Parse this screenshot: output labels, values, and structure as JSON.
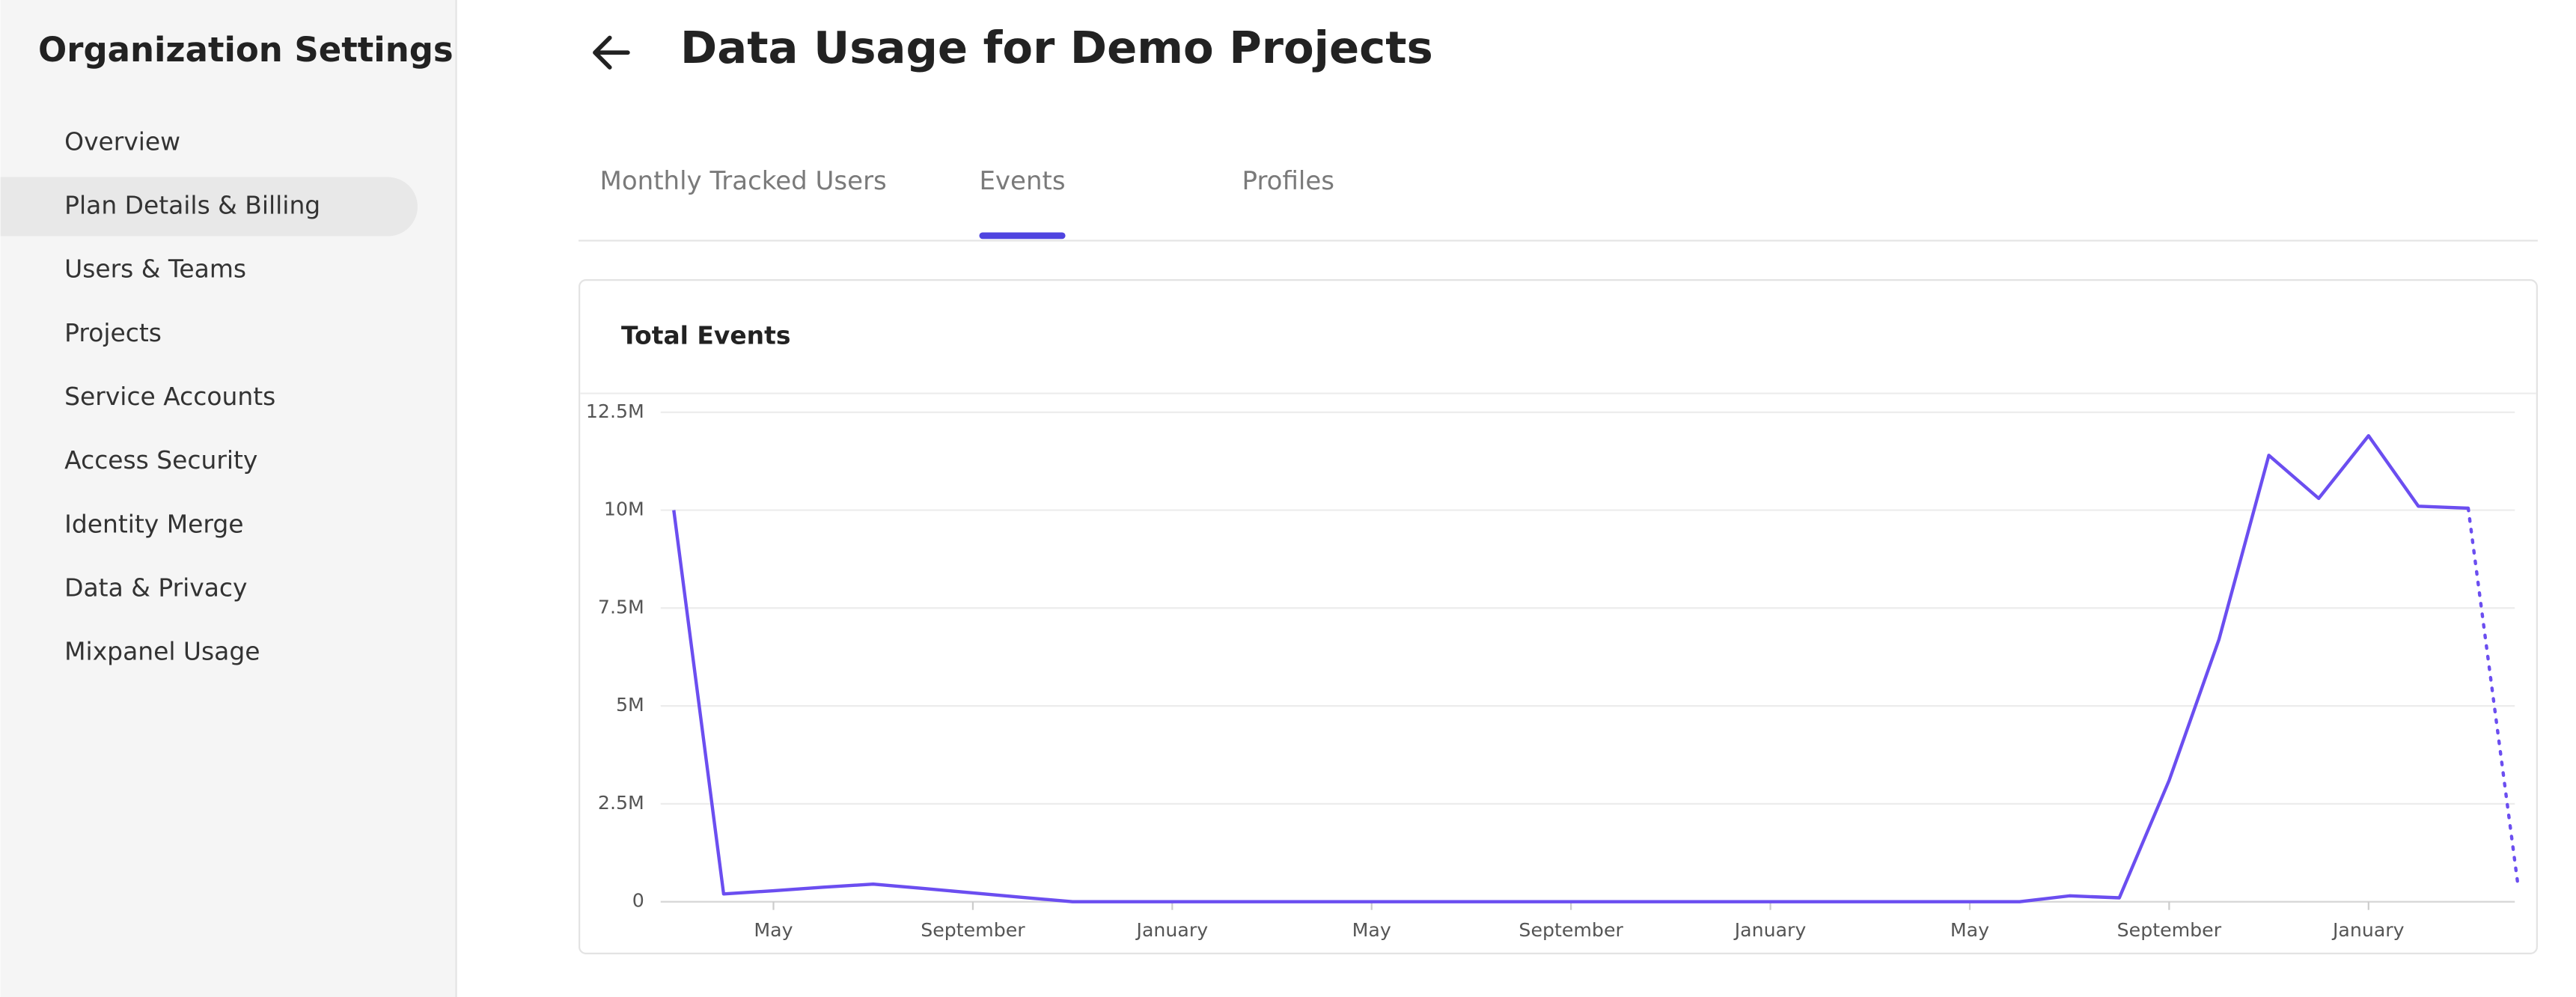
{
  "sidebar": {
    "title": "Organization Settings",
    "items": [
      "Overview",
      "Plan Details & Billing",
      "Users & Teams",
      "Projects",
      "Service Accounts",
      "Access Security",
      "Identity Merge",
      "Data & Privacy",
      "Mixpanel Usage"
    ],
    "active": 1
  },
  "header": {
    "title": "Data Usage for Demo Projects"
  },
  "tabs": {
    "items": [
      "Monthly Tracked Users",
      "Events",
      "Profiles"
    ],
    "active": 1
  },
  "chart_data": {
    "type": "line",
    "title": "Total Events",
    "categories": [
      null,
      null,
      "May",
      null,
      null,
      null,
      "September",
      null,
      null,
      null,
      "January",
      null,
      null,
      null,
      "May",
      null,
      null,
      null,
      "September",
      null,
      null,
      null,
      "January",
      null,
      null,
      null,
      "May",
      null,
      null,
      null,
      "September",
      null,
      null,
      null,
      "January",
      null,
      null,
      null
    ],
    "values": [
      10000000,
      200000,
      280000,
      370000,
      450000,
      340000,
      225000,
      110000,
      0,
      0,
      0,
      0,
      0,
      0,
      0,
      0,
      0,
      0,
      0,
      0,
      0,
      0,
      0,
      0,
      0,
      0,
      0,
      0,
      150000,
      100000,
      3100000,
      6700000,
      11400000,
      10300000,
      11900000,
      10100000,
      10050000,
      400000
    ],
    "color": "#6b4ef0",
    "last_segment_style": "dotted",
    "ylim": [
      0,
      12500000
    ],
    "yticks": [
      0,
      {
        "value": 2500000,
        "label": "2.5M"
      },
      {
        "value": 5000000,
        "label": "5M"
      },
      {
        "value": 7500000,
        "label": "7.5M"
      },
      {
        "value": 10000000,
        "label": "10M"
      },
      {
        "value": 12500000,
        "label": "12.5M"
      }
    ],
    "grid": true
  }
}
